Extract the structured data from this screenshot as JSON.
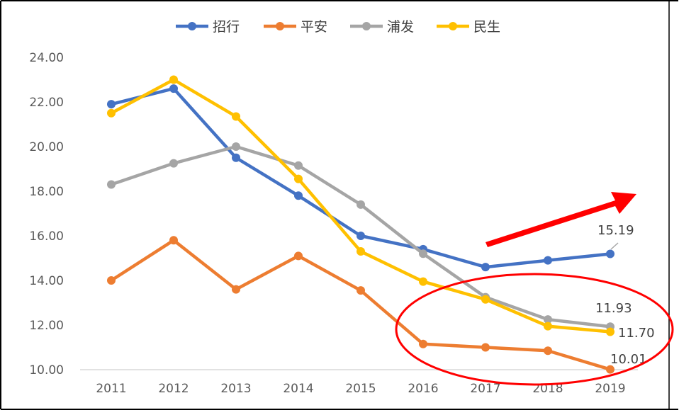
{
  "chart_data": {
    "type": "line",
    "categories": [
      "2011",
      "2012",
      "2013",
      "2014",
      "2015",
      "2016",
      "2017",
      "2018",
      "2019"
    ],
    "series": [
      {
        "name": "招行",
        "color": "#4472C4",
        "values": [
          21.9,
          22.6,
          19.5,
          17.8,
          16.0,
          15.4,
          14.6,
          14.9,
          15.19
        ]
      },
      {
        "name": "平安",
        "color": "#ED7D31",
        "values": [
          14.0,
          15.8,
          13.6,
          15.1,
          13.55,
          11.15,
          11.0,
          10.85,
          10.01
        ]
      },
      {
        "name": "浦发",
        "color": "#A5A5A5",
        "values": [
          18.3,
          19.25,
          20.0,
          19.15,
          17.4,
          15.2,
          13.25,
          12.25,
          11.93
        ]
      },
      {
        "name": "民生",
        "color": "#FFC000",
        "values": [
          21.5,
          23.0,
          21.35,
          18.55,
          15.3,
          13.95,
          13.15,
          11.95,
          11.7
        ]
      }
    ],
    "ylim": [
      10,
      24
    ],
    "yticks": [
      "10.00",
      "12.00",
      "14.00",
      "16.00",
      "18.00",
      "20.00",
      "22.00",
      "24.00"
    ],
    "data_labels": [
      {
        "series": "招行",
        "category": "2019",
        "text": "15.19"
      },
      {
        "series": "浦发",
        "category": "2019",
        "text": "11.93"
      },
      {
        "series": "民生",
        "category": "2019",
        "text": "11.70"
      },
      {
        "series": "平安",
        "category": "2019",
        "text": "10.01"
      }
    ],
    "legend": "top",
    "grid": false,
    "annotations": {
      "arrow_color": "#FF0000",
      "ellipse_color": "#FF0000"
    }
  }
}
